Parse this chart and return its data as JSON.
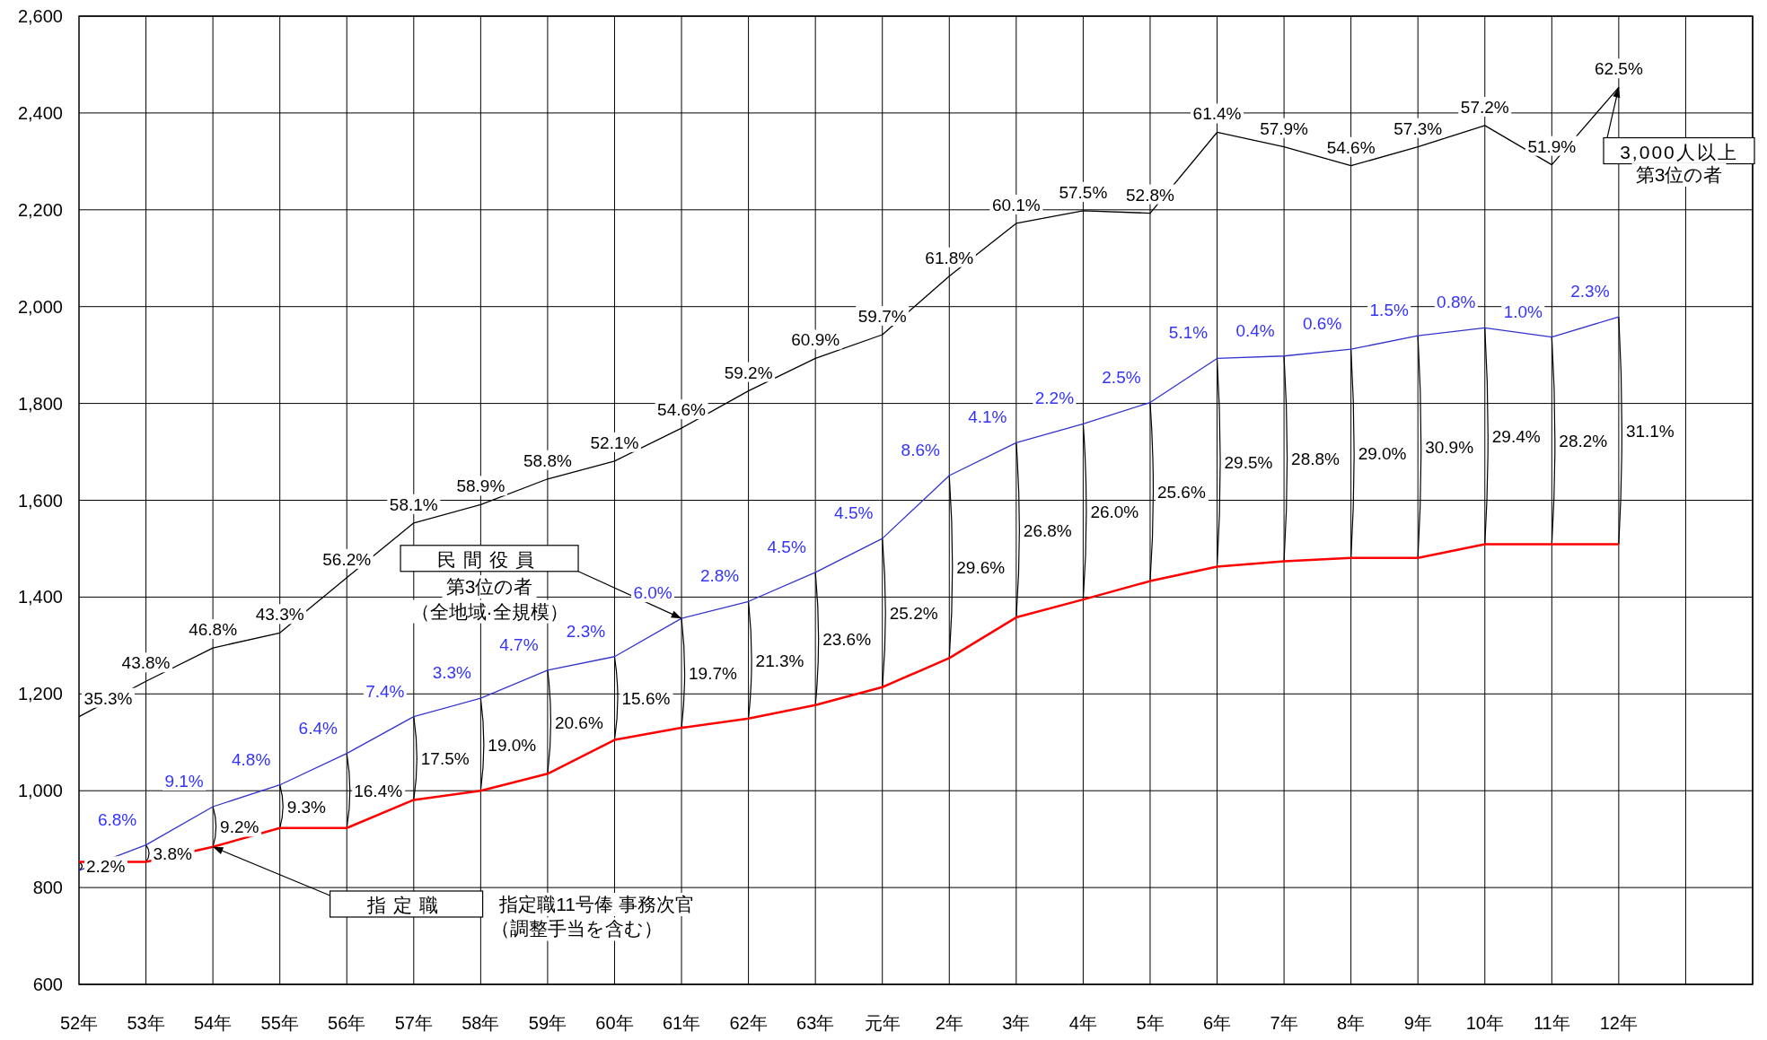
{
  "chart_data": {
    "type": "line",
    "categories": [
      "52年",
      "53年",
      "54年",
      "55年",
      "56年",
      "57年",
      "58年",
      "59年",
      "60年",
      "61年",
      "62年",
      "63年",
      "元年",
      "2年",
      "3年",
      "4年",
      "5年",
      "6年",
      "7年",
      "8年",
      "9年",
      "10年",
      "11年",
      "12年"
    ],
    "ylim": [
      600,
      2600
    ],
    "yticks": [
      600,
      800,
      {
        "value": 1000,
        "label": "1,000"
      },
      {
        "value": 1200,
        "label": "1,200"
      },
      {
        "value": 1400,
        "label": "1,400"
      },
      {
        "value": 1600,
        "label": "1,600"
      },
      {
        "value": 1800,
        "label": "1,800"
      },
      {
        "value": 2000,
        "label": "2,000"
      },
      {
        "value": 2200,
        "label": "2,200"
      },
      {
        "value": 2400,
        "label": "2,400"
      },
      {
        "value": 2600,
        "label": "2,600"
      }
    ],
    "grid": true,
    "series": [
      {
        "name": "3,000人以上",
        "color": "#000000",
        "values": [
          1153,
          1226,
          1295,
          1326,
          1440,
          1553,
          1591,
          1644,
          1681,
          1749,
          1826,
          1893,
          1942,
          2063,
          2172,
          2198,
          2193,
          2360,
          2330,
          2291,
          2330,
          2374,
          2293,
          2453
        ]
      },
      {
        "name": "民間役員",
        "color": "#3333cc",
        "values": [
          835,
          888,
          967,
          1012,
          1077,
          1153,
          1191,
          1249,
          1277,
          1356,
          1391,
          1451,
          1521,
          1651,
          1719,
          1758,
          1802,
          1893,
          1898,
          1912,
          1940,
          1956,
          1937,
          1979
        ]
      },
      {
        "name": "指定職",
        "color": "#ff0000",
        "values": [
          853,
          853,
          884,
          923,
          923,
          981,
          1000,
          1035,
          1105,
          1130,
          1149,
          1177,
          1214,
          1274,
          1358,
          1395,
          1433,
          1463,
          1474,
          1481,
          1481,
          1509,
          1509,
          1509
        ]
      }
    ],
    "annotations": [
      "第3位の者",
      "第3位の者",
      "（全地域·全規模）",
      "指定職11号俸 事務次官",
      "（調整手当を含む）",
      "35.3%",
      "43.8%",
      "46.8%",
      "43.3%",
      "56.2%",
      "58.1%",
      "58.9%",
      "58.8%",
      "52.1%",
      "54.6%",
      "59.2%",
      "60.9%",
      "59.7%",
      "61.8%",
      "60.1%",
      "57.5%",
      "52.8%",
      "61.4%",
      "57.9%",
      "54.6%",
      "57.3%",
      "57.2%",
      "51.9%",
      "62.5%",
      {
        "text": "6.8%",
        "x": "53年",
        "y": 888
      },
      {
        "text": "9.1%",
        "x": "54年",
        "y": 967
      },
      {
        "text": "4.8%",
        "x": "55年",
        "y": 1012
      },
      {
        "text": "6.4%",
        "x": "56年",
        "y": 1077
      },
      {
        "text": "7.4%",
        "x": "57年",
        "y": 1153
      },
      {
        "text": "3.3%",
        "x": "58年",
        "y": 1191
      },
      {
        "text": "4.7%",
        "x": "59年",
        "y": 1249
      },
      {
        "text": "2.3%",
        "x": "60年",
        "y": 1277
      },
      {
        "text": "6.0%",
        "x": "61年",
        "y": 1356
      },
      {
        "text": "2.8%",
        "x": "62年",
        "y": 1391
      },
      {
        "text": "4.5%",
        "x": "63年",
        "y": 1451
      },
      {
        "text": "4.5%",
        "x": "元年",
        "y": 1521
      },
      {
        "text": "8.6%",
        "x": "2年",
        "y": 1651
      },
      {
        "text": "4.1%",
        "x": "3年",
        "y": 1719
      },
      {
        "text": "2.2%",
        "x": "4年",
        "y": 1758
      },
      {
        "text": "2.5%",
        "x": "5年",
        "y": 1802
      },
      {
        "text": "5.1%",
        "x": "6年",
        "y": 1893
      },
      {
        "text": "0.4%",
        "x": "7年",
        "y": 1898
      },
      {
        "text": "0.6%",
        "x": "8年",
        "y": 1912
      },
      {
        "text": "1.5%",
        "x": "9年",
        "y": 1940
      },
      {
        "text": "0.8%",
        "x": "10年",
        "y": 1956
      },
      {
        "text": "1.0%",
        "x": "11年",
        "y": 1937
      },
      {
        "text": "2.3%",
        "x": "12年",
        "y": 1979
      },
      {
        "text": "2.2%",
        "x": "52年",
        "y": 853
      },
      {
        "text": "3.8%",
        "x": "53年",
        "y": 853
      },
      {
        "text": "9.2%",
        "x": "54年",
        "y": 884
      },
      {
        "text": "9.3%",
        "x": "55年",
        "y": 923
      },
      {
        "text": "16.4%",
        "x": "56年",
        "y": 923
      },
      {
        "text": "17.5%",
        "x": "57年",
        "y": 981
      },
      {
        "text": "19.0%",
        "x": "58年",
        "y": 1000
      },
      {
        "text": "20.6%",
        "x": "59年",
        "y": 1035
      },
      {
        "text": "15.6%",
        "x": "60年",
        "y": 1105
      },
      {
        "text": "19.7%",
        "x": "61年",
        "y": 1130
      },
      {
        "text": "21.3%",
        "x": "62年",
        "y": 1149
      },
      "23.6%",
      "25.2%",
      "29.6%",
      "26.8%",
      "26.0%",
      "25.6%",
      "29.5%",
      "28.8%",
      "29.0%",
      "30.9%",
      "29.4%",
      "28.2%",
      "31.1%"
    ]
  }
}
